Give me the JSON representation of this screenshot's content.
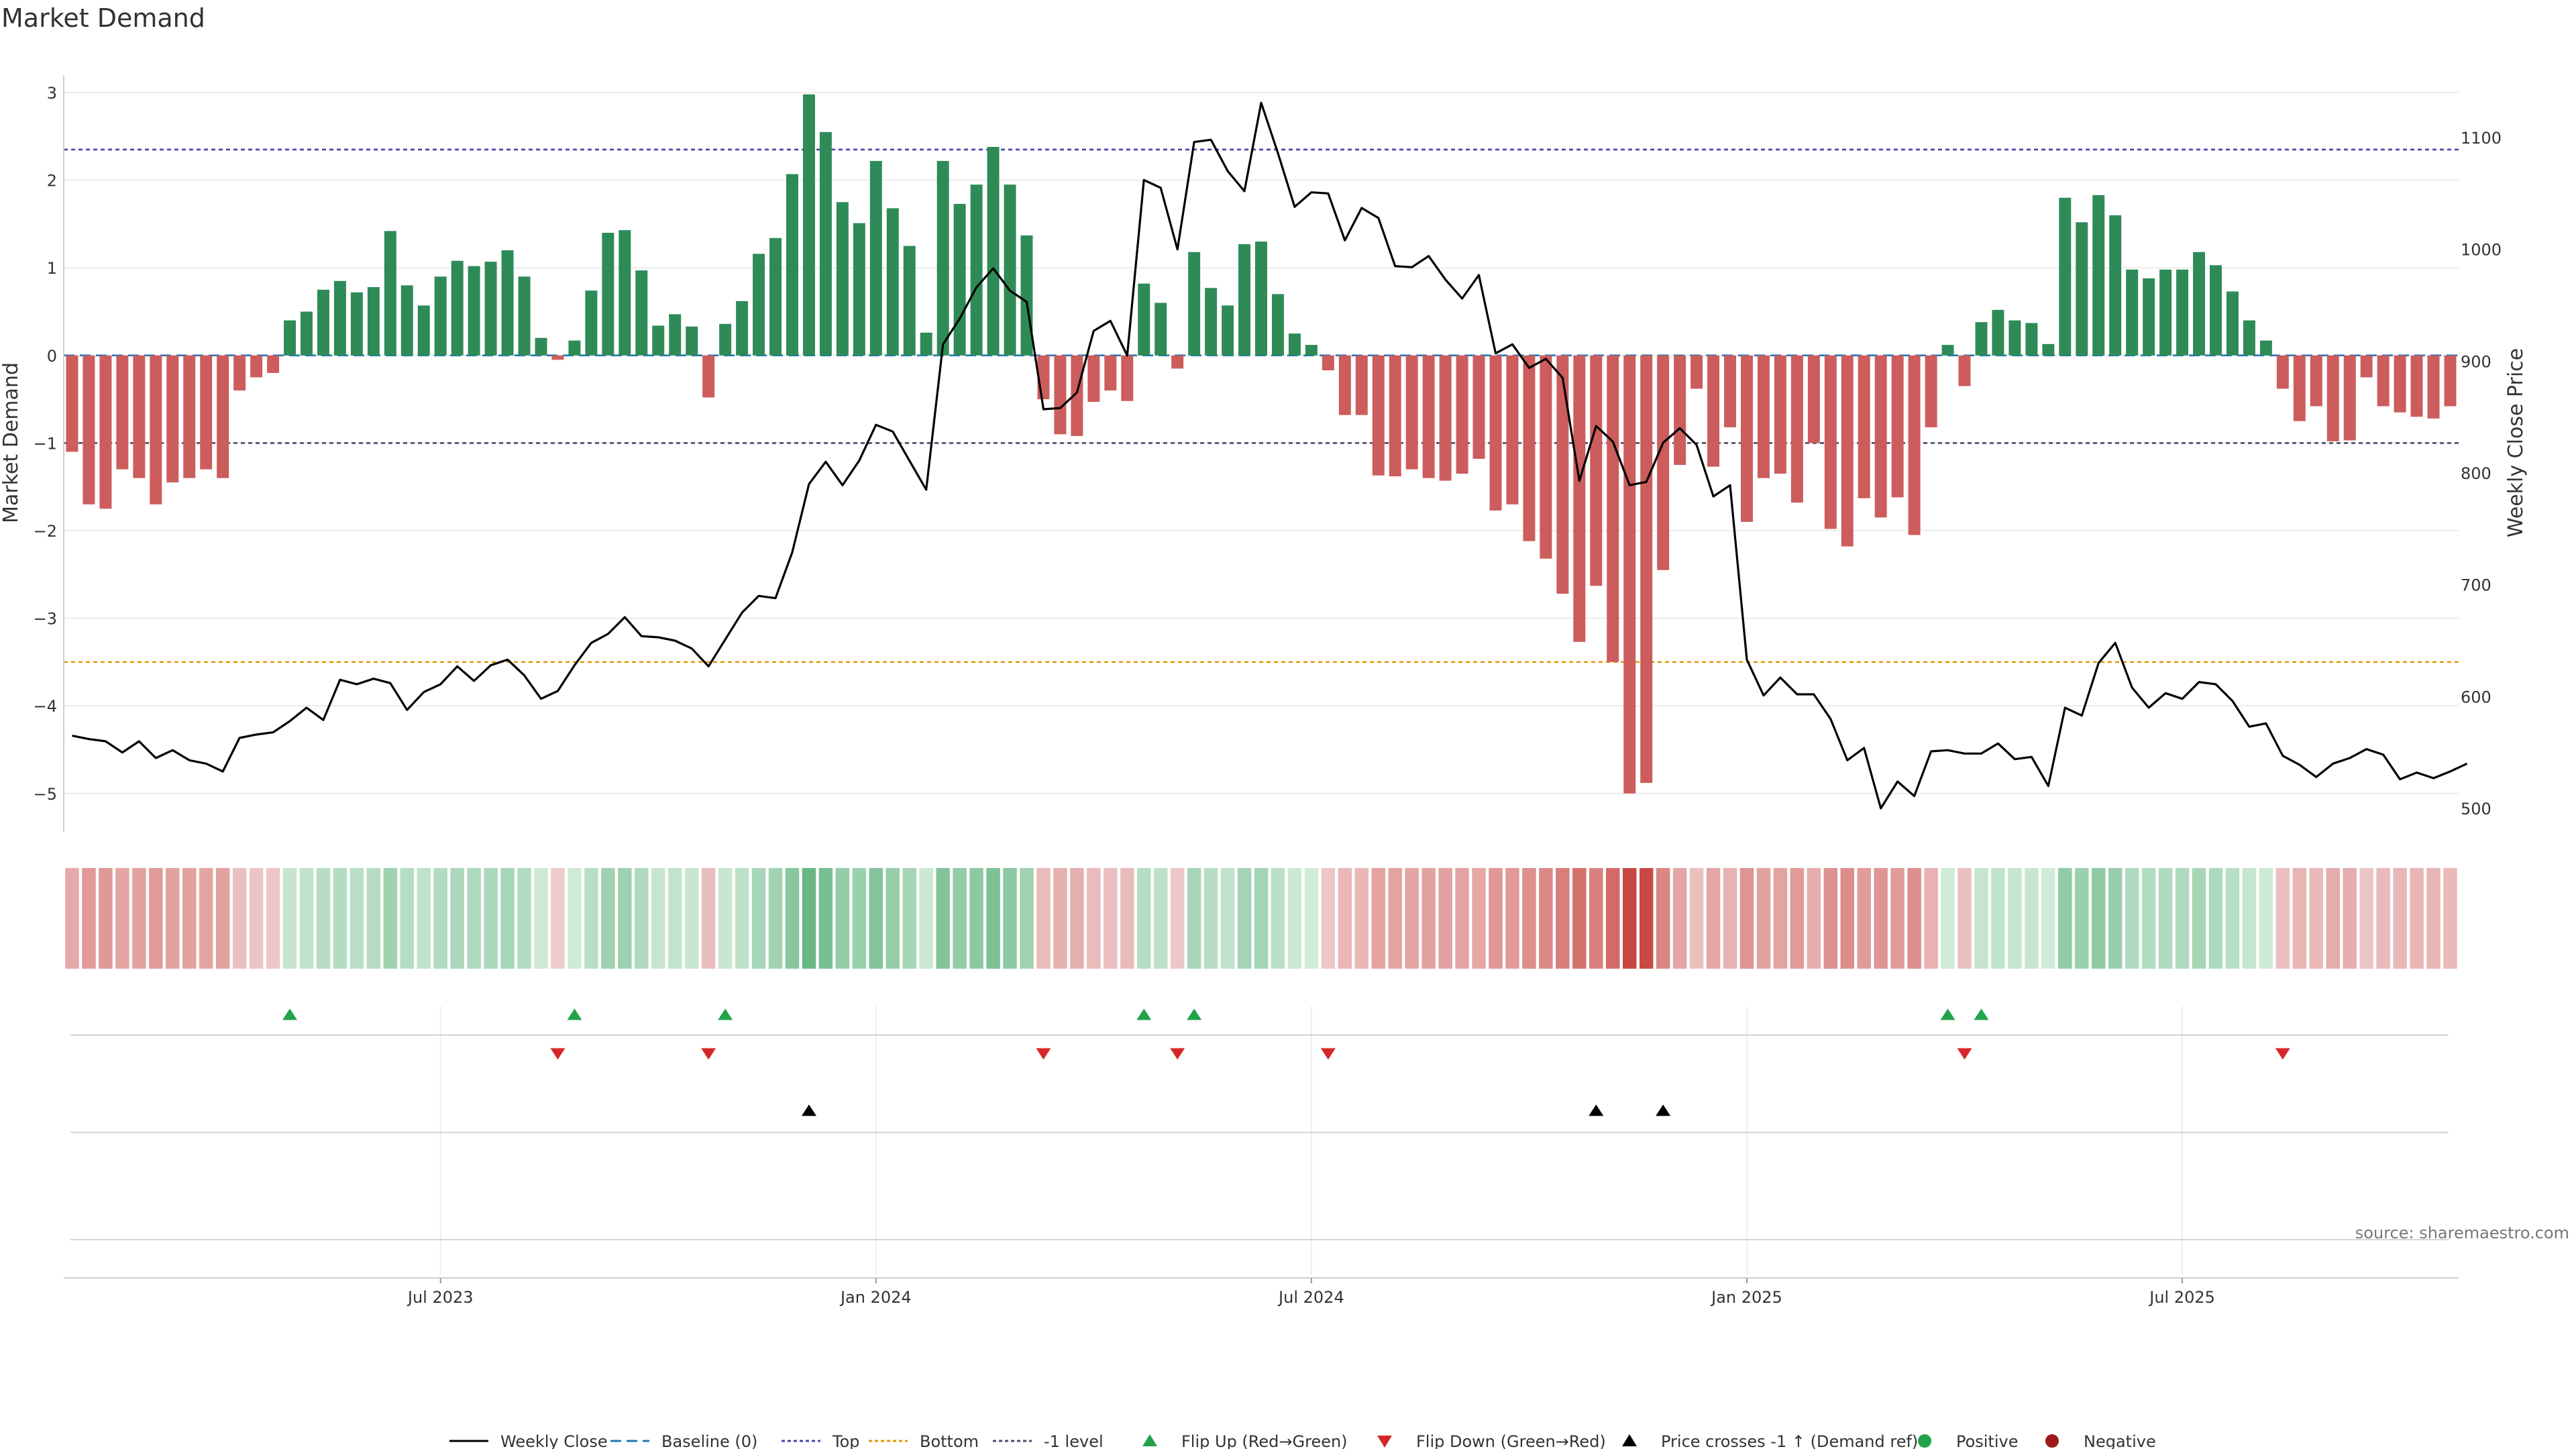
{
  "chart_data": {
    "type": "bar",
    "title": "Market Demand",
    "ylabel": "Market Demand",
    "y2label": "Weekly Close Price",
    "ylim": [
      -5.4,
      3.1
    ],
    "y2lim": [
      482,
      1148
    ],
    "yticks": [
      {
        "v": 3,
        "label": "3"
      },
      {
        "v": 2,
        "label": "2"
      },
      {
        "v": 1,
        "label": "1"
      },
      {
        "v": 0,
        "label": "0"
      },
      {
        "v": -1,
        "label": "−1"
      },
      {
        "v": -2,
        "label": "−2"
      },
      {
        "v": -3,
        "label": "−3"
      },
      {
        "v": -4,
        "label": "−4"
      },
      {
        "v": -5,
        "label": "−5"
      }
    ],
    "y2ticks": [
      {
        "v": 1100,
        "label": "1100"
      },
      {
        "v": 1000,
        "label": "1000"
      },
      {
        "v": 900,
        "label": "900"
      },
      {
        "v": 800,
        "label": "800"
      },
      {
        "v": 700,
        "label": "700"
      },
      {
        "v": 600,
        "label": "600"
      },
      {
        "v": 500,
        "label": "500"
      }
    ],
    "xticks": [
      {
        "week": 22,
        "label": "Jul 2023"
      },
      {
        "week": 48,
        "label": "Jan 2024"
      },
      {
        "week": 74,
        "label": "Jul 2024"
      },
      {
        "week": 100,
        "label": "Jan 2025"
      },
      {
        "week": 126,
        "label": "Jul 2025"
      }
    ],
    "reference_lines": {
      "top": 2.35,
      "bottom": -3.5,
      "minus_one": -1
    },
    "series": [
      {
        "name": "Market Demand",
        "values": [
          -1.1,
          -1.7,
          -1.75,
          -1.3,
          -1.4,
          -1.7,
          -1.45,
          -1.4,
          -1.3,
          -1.4,
          -0.4,
          -0.25,
          -0.2,
          0.4,
          0.5,
          0.75,
          0.85,
          0.72,
          0.78,
          1.42,
          0.8,
          0.57,
          0.9,
          1.08,
          1.02,
          1.07,
          1.2,
          0.9,
          0.2,
          -0.05,
          0.17,
          0.74,
          1.4,
          1.43,
          0.97,
          0.34,
          0.47,
          0.33,
          -0.48,
          0.36,
          0.62,
          1.16,
          1.34,
          2.07,
          2.98,
          2.55,
          1.75,
          1.51,
          2.22,
          1.68,
          1.25,
          0.26,
          2.22,
          1.73,
          1.95,
          2.38,
          1.95,
          1.37,
          -0.5,
          -0.9,
          -0.92,
          -0.53,
          -0.4,
          -0.52,
          0.82,
          0.6,
          -0.15,
          1.18,
          0.77,
          0.57,
          1.27,
          1.3,
          0.7,
          0.25,
          0.12,
          -0.17,
          -0.68,
          -0.68,
          -1.37,
          -1.38,
          -1.3,
          -1.4,
          -1.43,
          -1.35,
          -1.18,
          -1.77,
          -1.7,
          -2.12,
          -2.32,
          -2.72,
          -3.27,
          -2.63,
          -3.5,
          -5.0,
          -4.88,
          -2.45,
          -1.25,
          -0.38,
          -1.27,
          -0.82,
          -1.9,
          -1.4,
          -1.35,
          -1.68,
          -1.0,
          -1.98,
          -2.18,
          -1.63,
          -1.85,
          -1.62,
          -2.05,
          -0.82,
          0.12,
          -0.35,
          0.38,
          0.52,
          0.4,
          0.37,
          0.13,
          1.8,
          1.52,
          1.83,
          1.6,
          0.98,
          0.88,
          0.98,
          0.98,
          1.18,
          1.03,
          0.73,
          0.4,
          0.17,
          -0.38,
          -0.75,
          -0.58,
          -0.98,
          -0.97,
          -0.25,
          -0.58,
          -0.65,
          -0.7,
          -0.72,
          -0.58
        ]
      },
      {
        "name": "Weekly Close",
        "values": [
          565,
          562,
          560,
          550,
          560,
          545,
          552,
          543,
          540,
          533,
          563,
          566,
          568,
          578,
          590,
          579,
          615,
          611,
          616,
          612,
          588,
          604,
          611,
          627,
          614,
          628,
          633,
          619,
          598,
          605,
          628,
          648,
          656,
          671,
          654,
          653,
          650,
          643,
          627,
          651,
          675,
          690,
          688,
          729,
          790,
          810,
          789,
          811,
          843,
          837,
          811,
          785,
          915,
          938,
          966,
          983,
          963,
          953,
          857,
          858,
          872,
          927,
          936,
          905,
          1062,
          1055,
          1000,
          1096,
          1098,
          1070,
          1052,
          1131,
          1086,
          1038,
          1051,
          1050,
          1008,
          1037,
          1028,
          985,
          984,
          994,
          973,
          956,
          977,
          907,
          915,
          894,
          902,
          885,
          793,
          842,
          828,
          789,
          792,
          827,
          840,
          825,
          779,
          789,
          633,
          601,
          617,
          602,
          602,
          580,
          543,
          554,
          500,
          524,
          511,
          551,
          552,
          549,
          549,
          558,
          544,
          546,
          520,
          590,
          583,
          630,
          648,
          608,
          590,
          603,
          598,
          613,
          611,
          596,
          573,
          576,
          547,
          539,
          528,
          540,
          545,
          553,
          548,
          526,
          532,
          527,
          533,
          540
        ]
      }
    ],
    "heat_strip": {
      "label": "Demand heat strip",
      "intensity_source": "Market Demand"
    },
    "markers": {
      "flip_up_weeks": [
        13,
        30,
        39,
        64,
        67,
        112,
        114
      ],
      "flip_down_weeks": [
        29,
        38,
        58,
        66,
        75,
        113,
        132
      ],
      "price_cross_weeks": [
        44,
        91,
        95
      ],
      "positive_weeks": [],
      "negative_weeks": []
    },
    "legend": [
      {
        "label": "Weekly Close",
        "style": "line",
        "color": "#000000"
      },
      {
        "label": "Baseline (0)",
        "style": "dashed",
        "color": "#1f77b4"
      },
      {
        "label": "Top",
        "style": "dotted",
        "color": "#4444aa"
      },
      {
        "label": "Bottom",
        "style": "dotted",
        "color": "#e69500"
      },
      {
        "label": "-1 level",
        "style": "dotted",
        "color": "#4a4a6a"
      },
      {
        "label": "Flip Up (Red→Green)",
        "style": "tri-up",
        "color": "#22a34a"
      },
      {
        "label": "Flip Down (Green→Red)",
        "style": "tri-down",
        "color": "#d62728"
      },
      {
        "label": "Price crosses -1 ↑ (Demand ref)",
        "style": "tri-up",
        "color": "#000000"
      },
      {
        "label": "Positive",
        "style": "dot",
        "color": "#22a34a"
      },
      {
        "label": "Negative",
        "style": "dot",
        "color": "#a11a1a"
      }
    ],
    "source": "source: sharemaestro.com",
    "colors": {
      "positive": "#2e8b57",
      "negative": "#cd5c5c",
      "price": "#000000",
      "top": "#4444aa",
      "bottom": "#e69500",
      "minus_one": "#4a4a6a"
    }
  }
}
